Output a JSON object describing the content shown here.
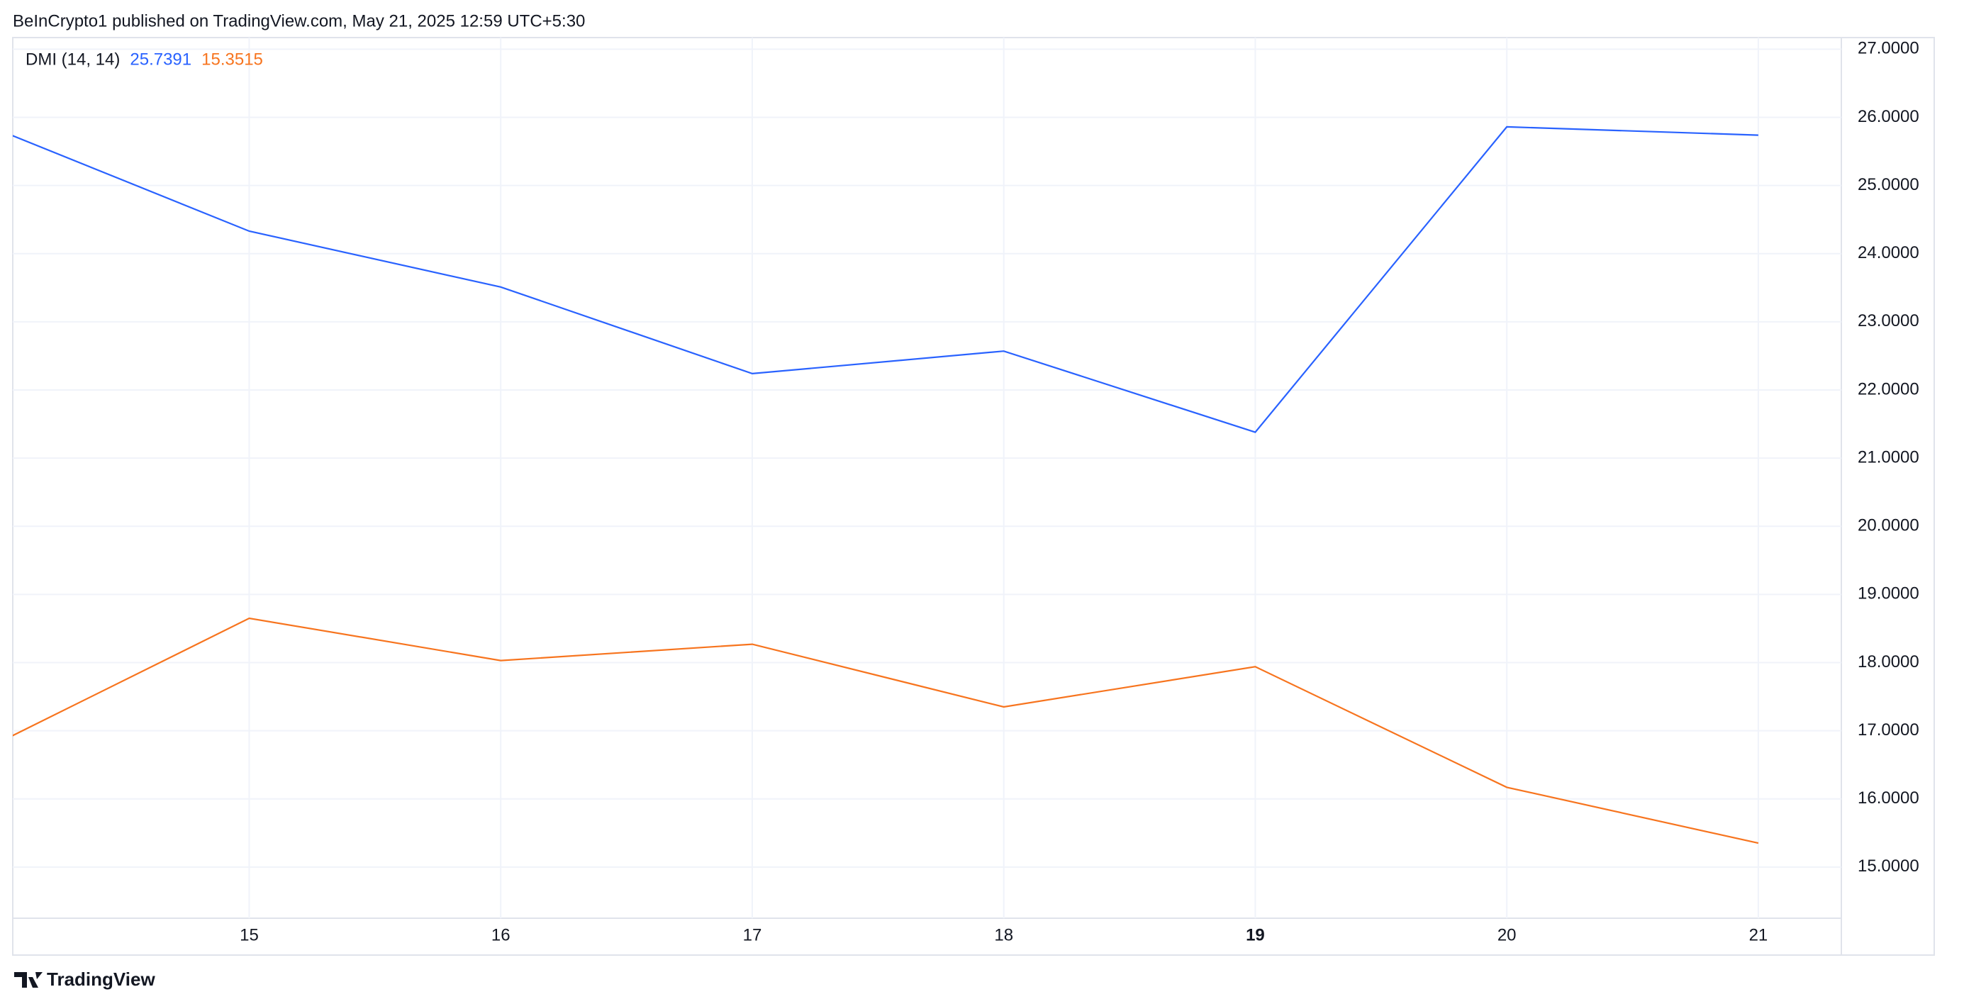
{
  "header": "BeInCrypto1 published on TradingView.com, May 21, 2025 12:59 UTC+5:30",
  "footer": "TradingView",
  "chart_data": {
    "type": "line",
    "title": "DMI (14, 14)",
    "x": [
      14,
      15,
      16,
      17,
      18,
      19,
      20,
      21
    ],
    "series": [
      {
        "color": "#2962ff",
        "values": [
          25.82,
          24.33,
          23.51,
          22.24,
          22.57,
          21.38,
          25.86,
          25.7391
        ]
      },
      {
        "color": "#f7741e",
        "values": [
          16.82,
          18.65,
          18.03,
          18.27,
          17.35,
          17.94,
          16.17,
          15.3515
        ]
      }
    ],
    "xlim": [
      14.06,
      21.33
    ],
    "xticks": [
      15,
      16,
      17,
      18,
      19,
      20,
      21
    ],
    "ylim": [
      14.25,
      27.17
    ],
    "yticks": [
      {
        "value": 15,
        "label": "15.0000"
      },
      {
        "value": 16,
        "label": "16.0000"
      },
      {
        "value": 17,
        "label": "17.0000"
      },
      {
        "value": 18,
        "label": "18.0000"
      },
      {
        "value": 19,
        "label": "19.0000"
      },
      {
        "value": 20,
        "label": "20.0000"
      },
      {
        "value": 21,
        "label": "21.0000"
      },
      {
        "value": 22,
        "label": "22.0000"
      },
      {
        "value": 23,
        "label": "23.0000"
      },
      {
        "value": 24,
        "label": "24.0000"
      },
      {
        "value": 25,
        "label": "25.0000"
      },
      {
        "value": 26,
        "label": "26.0000"
      },
      {
        "value": 27,
        "label": "27.0000"
      }
    ],
    "grid": true
  }
}
